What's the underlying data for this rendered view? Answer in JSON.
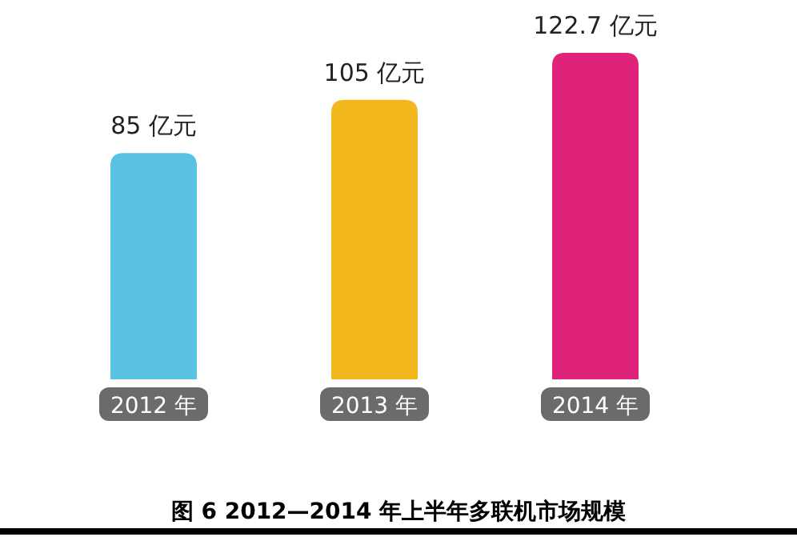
{
  "chart_data": {
    "type": "bar",
    "title": "图 6   2012—2014 年上半年多联机市场规模",
    "categories": [
      "2012 年",
      "2013 年",
      "2014 年"
    ],
    "values": [
      85,
      105,
      122.7
    ],
    "colors": [
      "#5bc2e2",
      "#f3b81e",
      "#e0237a"
    ],
    "value_labels": [
      "85 亿元",
      "105 亿元",
      "122.7 亿元"
    ]
  }
}
